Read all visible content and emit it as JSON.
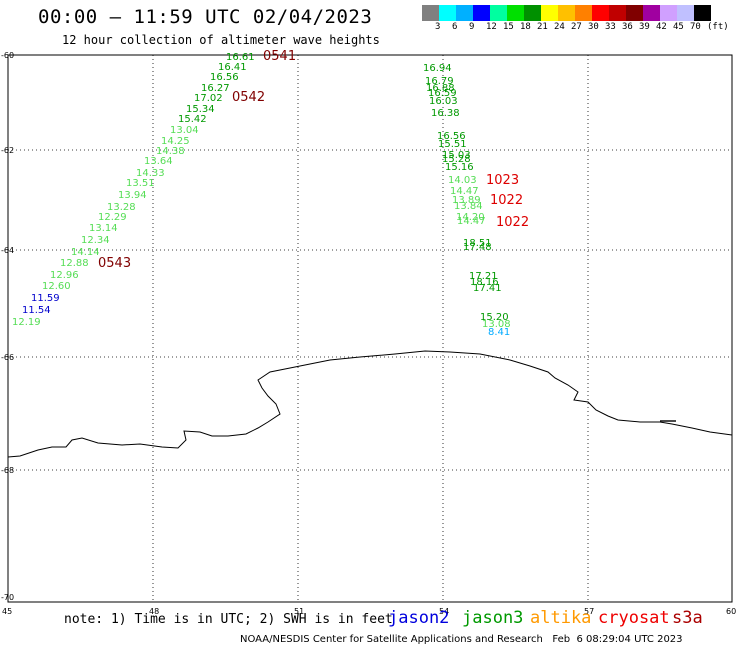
{
  "header": {
    "title": "00:00 – 11:59 UTC 02/04/2023",
    "subtitle": "12 hour collection of altimeter wave heights"
  },
  "colorbar": {
    "colors": [
      "#808080",
      "#00ffff",
      "#00b0ff",
      "#0000ff",
      "#00ffa0",
      "#00e000",
      "#009000",
      "#ffff00",
      "#ffc000",
      "#ff8000",
      "#ff0000",
      "#c00000",
      "#800000",
      "#a000a0",
      "#d0a0ff",
      "#c0c0ff",
      "#000000"
    ],
    "labels": [
      "3",
      "6",
      "9",
      "12",
      "15",
      "18",
      "21",
      "24",
      "27",
      "30",
      "33",
      "36",
      "39",
      "42",
      "45",
      "70",
      "(ft)"
    ]
  },
  "map": {
    "lat_labels": [
      "-60",
      "-62",
      "-64",
      "-66",
      "-68",
      "-70"
    ],
    "lon_labels": [
      "45",
      "48",
      "51",
      "54",
      "57",
      "60"
    ],
    "western_track": [
      {
        "v": "16.61",
        "c": "#009900"
      },
      {
        "v": "16.41",
        "c": "#009900"
      },
      {
        "v": "16.56",
        "c": "#009900"
      },
      {
        "v": "16.27",
        "c": "#009900"
      },
      {
        "v": "17.02",
        "c": "#009900"
      },
      {
        "v": "15.34",
        "c": "#009900"
      },
      {
        "v": "15.42",
        "c": "#009900"
      },
      {
        "v": "13.04",
        "c": "#55dd55"
      },
      {
        "v": "14.25",
        "c": "#55dd55"
      },
      {
        "v": "14.38",
        "c": "#55dd55"
      },
      {
        "v": "13.64",
        "c": "#55dd55"
      },
      {
        "v": "14.33",
        "c": "#55dd55"
      },
      {
        "v": "13.51",
        "c": "#55dd55"
      },
      {
        "v": "13.94",
        "c": "#55dd55"
      },
      {
        "v": "13.28",
        "c": "#55dd55"
      },
      {
        "v": "12.29",
        "c": "#55dd55"
      },
      {
        "v": "13.14",
        "c": "#55dd55"
      },
      {
        "v": "12.34",
        "c": "#55dd55"
      },
      {
        "v": "14.14",
        "c": "#55dd55"
      },
      {
        "v": "12.88",
        "c": "#55dd55"
      },
      {
        "v": "12.96",
        "c": "#55dd55"
      },
      {
        "v": "12.60",
        "c": "#55dd55"
      },
      {
        "v": "11.59",
        "c": "#0000cc"
      },
      {
        "v": "11.54",
        "c": "#0000cc"
      },
      {
        "v": "12.19",
        "c": "#55dd55"
      }
    ],
    "eastern_track": [
      {
        "v": "16.94",
        "c": "#009900"
      },
      {
        "v": "16.79",
        "c": "#009900"
      },
      {
        "v": "16.88",
        "c": "#009900"
      },
      {
        "v": "16.59",
        "c": "#009900"
      },
      {
        "v": "16.03",
        "c": "#009900"
      },
      {
        "v": "16.38",
        "c": "#009900"
      },
      {
        "v": "16.56",
        "c": "#009900"
      },
      {
        "v": "15.51",
        "c": "#009900"
      },
      {
        "v": "15.03",
        "c": "#009900"
      },
      {
        "v": "15.28",
        "c": "#009900"
      },
      {
        "v": "15.16",
        "c": "#009900"
      },
      {
        "v": "14.03",
        "c": "#55dd55"
      },
      {
        "v": "14.47",
        "c": "#55dd55"
      },
      {
        "v": "13.89",
        "c": "#55dd55"
      },
      {
        "v": "13.84",
        "c": "#55dd55"
      },
      {
        "v": "14.20",
        "c": "#55dd55"
      },
      {
        "v": "14.47",
        "c": "#55dd55"
      },
      {
        "v": "18.51",
        "c": "#009900"
      },
      {
        "v": "17.48",
        "c": "#009900"
      },
      {
        "v": "17.21",
        "c": "#009900"
      },
      {
        "v": "18.16",
        "c": "#009900"
      },
      {
        "v": "17.41",
        "c": "#009900"
      },
      {
        "v": "15.20",
        "c": "#009900"
      },
      {
        "v": "13.08",
        "c": "#55dd55"
      },
      {
        "v": "8.41",
        "c": "#00aaff"
      }
    ],
    "time_labels": [
      {
        "t": "0541",
        "c": "#800000"
      },
      {
        "t": "0542",
        "c": "#800000"
      },
      {
        "t": "0543",
        "c": "#800000"
      },
      {
        "t": "1023",
        "c": "#dd0000"
      },
      {
        "t": "1022",
        "c": "#dd0000"
      },
      {
        "t": "1022",
        "c": "#dd0000"
      }
    ]
  },
  "footer": {
    "note": "note: 1) Time is in UTC; 2) SWH is in feet",
    "satellites": [
      {
        "name": "jason2",
        "color": "#0000dd"
      },
      {
        "name": "jason3",
        "color": "#009900"
      },
      {
        "name": "altika",
        "color": "#ff9900"
      },
      {
        "name": "cryosat",
        "color": "#ee0000"
      },
      {
        "name": "s3a",
        "color": "#aa0000"
      }
    ],
    "credit": "NOAA/NESDIS Center for Satellite Applications and Research   Feb  6 08:29:04 UTC 2023"
  }
}
